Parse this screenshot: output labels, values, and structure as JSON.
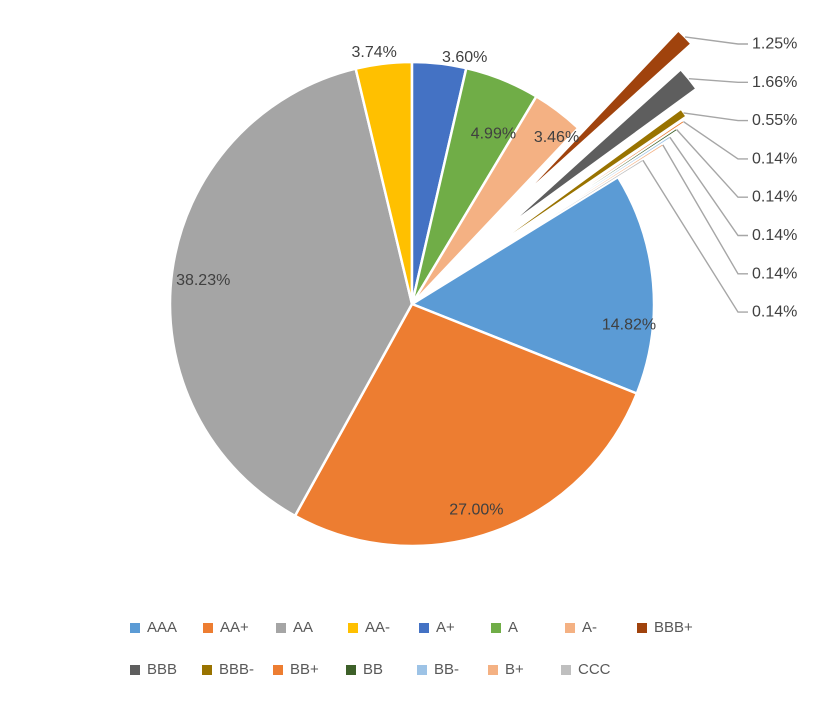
{
  "chart_data": {
    "type": "pie",
    "title": "",
    "units": "%",
    "legend_position": "bottom",
    "label_color": "#404040",
    "legend_text_color": "#595959",
    "leader_line_color": "#A6A6A6",
    "background": "#FFFFFF",
    "first_slice_angle_deg": 58.36,
    "categories": [
      "AAA",
      "AA+",
      "AA",
      "AA-",
      "A+",
      "A",
      "A-",
      "BBB+",
      "BBB",
      "BBB-",
      "BB+",
      "BB",
      "BB-",
      "B+",
      "CCC"
    ],
    "values": [
      14.82,
      27.0,
      38.23,
      3.74,
      3.6,
      4.99,
      3.46,
      1.25,
      1.66,
      0.55,
      0.14,
      0.14,
      0.14,
      0.14,
      0.14
    ],
    "slices": [
      {
        "label": "AAA",
        "value": 14.82,
        "display": "14.82%",
        "color": "#5B9BD5",
        "label_mode": "inside",
        "exploded": false
      },
      {
        "label": "AA+",
        "value": 27.0,
        "display": "27.00%",
        "color": "#ED7D31",
        "label_mode": "inside",
        "exploded": false
      },
      {
        "label": "AA",
        "value": 38.23,
        "display": "38.23%",
        "color": "#A5A5A5",
        "label_mode": "inside",
        "exploded": false
      },
      {
        "label": "AA-",
        "value": 3.74,
        "display": "3.74%",
        "color": "#FFC000",
        "label_mode": "outside",
        "exploded": false
      },
      {
        "label": "A+",
        "value": 3.6,
        "display": "3.60%",
        "color": "#4472C4",
        "label_mode": "outside",
        "exploded": false
      },
      {
        "label": "A",
        "value": 4.99,
        "display": "4.99%",
        "color": "#70AD47",
        "label_mode": "inside",
        "exploded": false
      },
      {
        "label": "A-",
        "value": 3.46,
        "display": "3.46%",
        "color": "#F4B183",
        "label_mode": "inside",
        "exploded": false
      },
      {
        "label": "BBB+",
        "value": 1.25,
        "display": "1.25%",
        "color": "#A0430D",
        "label_mode": "callout",
        "exploded": true
      },
      {
        "label": "BBB",
        "value": 1.66,
        "display": "1.66%",
        "color": "#5E5E5E",
        "label_mode": "callout",
        "exploded": true
      },
      {
        "label": "BBB-",
        "value": 0.55,
        "display": "0.55%",
        "color": "#997300",
        "label_mode": "callout",
        "exploded": true
      },
      {
        "label": "BB+",
        "value": 0.14,
        "display": "0.14%",
        "color": "#ED7D31",
        "label_mode": "callout",
        "exploded": true
      },
      {
        "label": "BB",
        "value": 0.14,
        "display": "0.14%",
        "color": "#3D6029",
        "label_mode": "callout",
        "exploded": true
      },
      {
        "label": "BB-",
        "value": 0.14,
        "display": "0.14%",
        "color": "#9DC3E6",
        "label_mode": "callout",
        "exploded": true
      },
      {
        "label": "B+",
        "value": 0.14,
        "display": "0.14%",
        "color": "#F4B183",
        "label_mode": "callout",
        "exploded": true
      },
      {
        "label": "CCC",
        "value": 0.14,
        "display": "0.14%",
        "color": "#BFBFBF",
        "label_mode": "callout",
        "exploded": true
      }
    ],
    "legend_rows": [
      [
        "AAA",
        "AA+",
        "AA",
        "AA-",
        "A+",
        "A",
        "A-",
        "BBB+"
      ],
      [
        "BBB",
        "BBB-",
        "BB+",
        "BB",
        "BB-",
        "B+",
        "CCC"
      ]
    ]
  }
}
